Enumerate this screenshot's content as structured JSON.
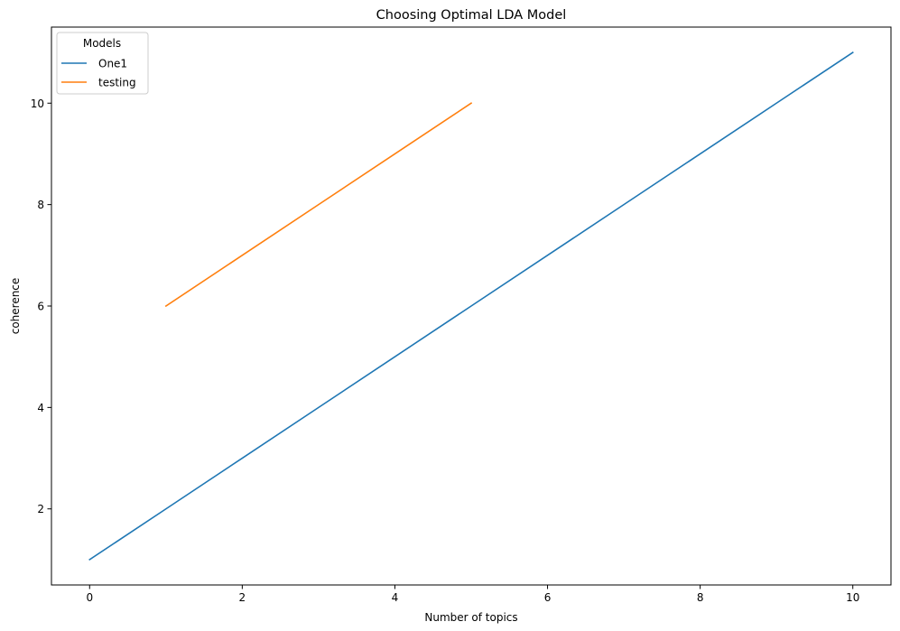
{
  "chart_data": {
    "type": "line",
    "title": "Choosing Optimal LDA Model",
    "xlabel": "Number of topics",
    "ylabel": "coherence",
    "xlim": [
      -0.5,
      10.5
    ],
    "ylim": [
      0.5,
      11.5
    ],
    "xticks": [
      0,
      2,
      4,
      6,
      8,
      10
    ],
    "yticks": [
      2,
      4,
      6,
      8,
      10
    ],
    "grid": false,
    "legend": {
      "title": "Models",
      "placement": "top-left"
    },
    "series": [
      {
        "name": "One1",
        "color": "#1f77b4",
        "x": [
          0,
          1,
          2,
          3,
          4,
          5,
          6,
          7,
          8,
          9,
          10
        ],
        "y": [
          1,
          2,
          3,
          4,
          5,
          6,
          7,
          8,
          9,
          10,
          11
        ]
      },
      {
        "name": "testing",
        "color": "#ff7f0e",
        "x": [
          1,
          2,
          3,
          4,
          5
        ],
        "y": [
          6,
          7,
          8,
          9,
          10
        ]
      }
    ]
  }
}
